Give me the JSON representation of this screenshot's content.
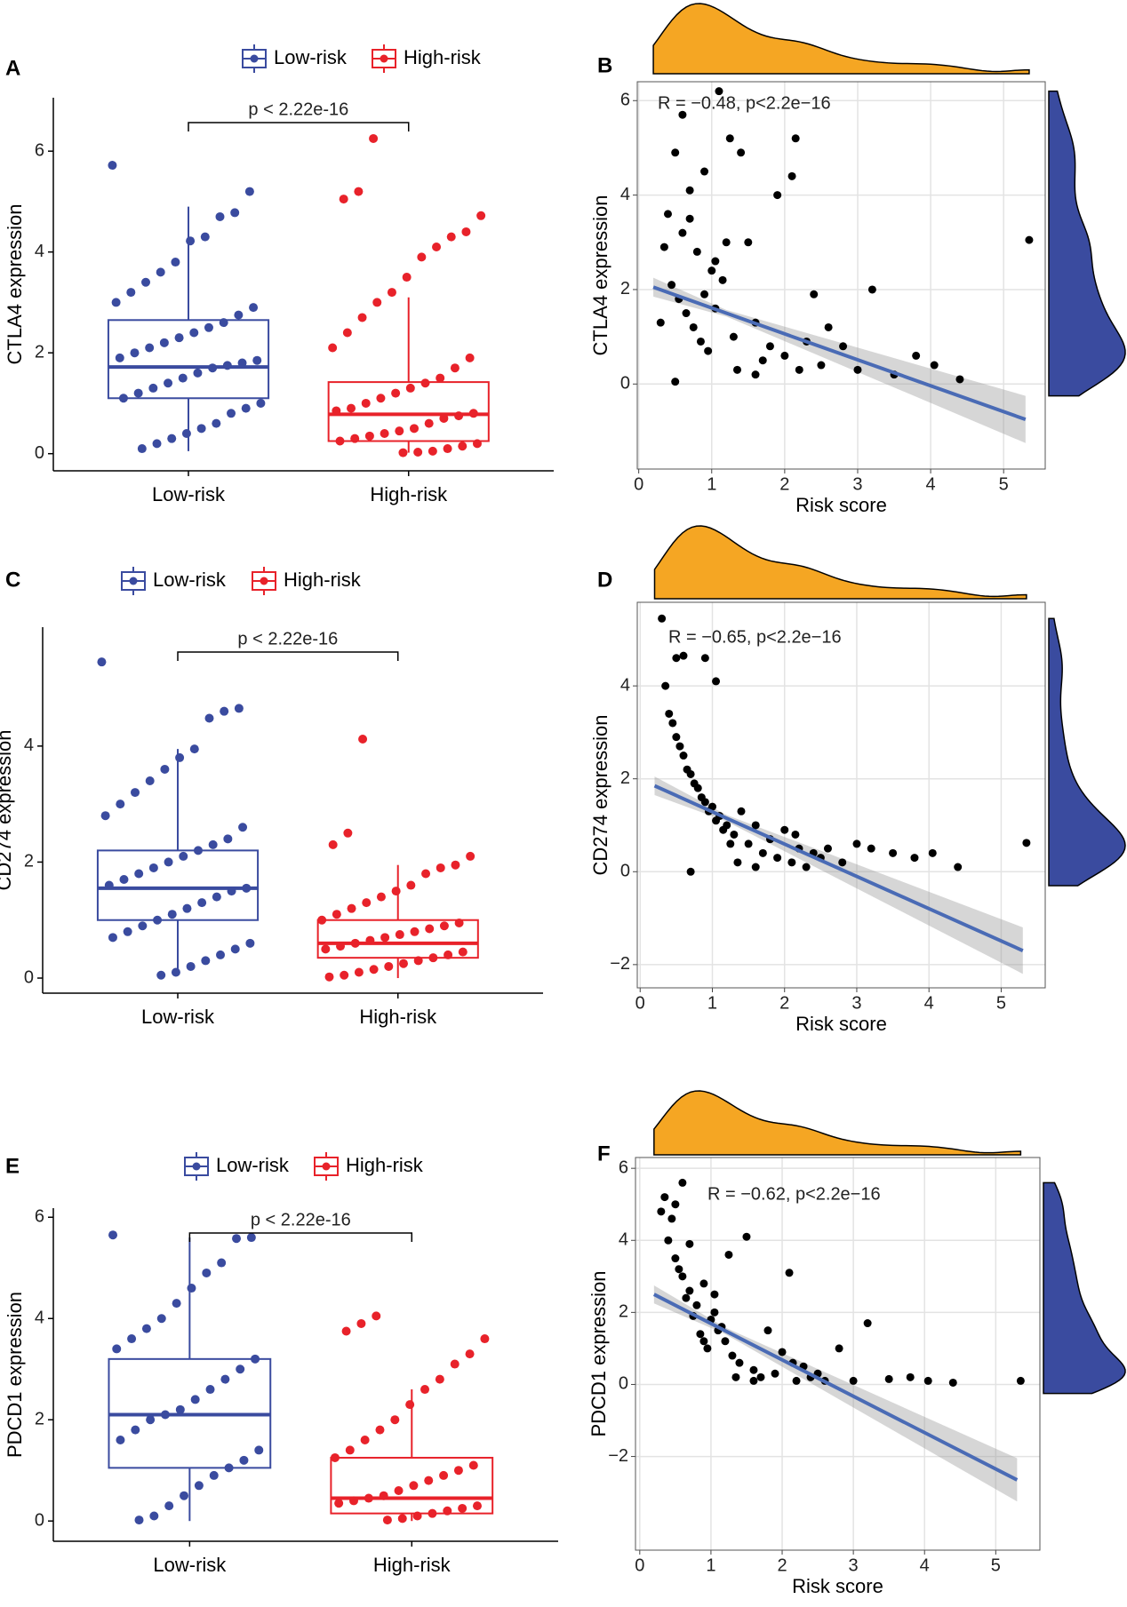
{
  "chart_data": [
    {
      "type": "box",
      "panel": "A",
      "ylabel": "CTLA4 expression",
      "annotation": "p < 2.22e-16",
      "categories": [
        "Low-risk",
        "High-risk"
      ],
      "ylim": [
        -0.34,
        7.06
      ],
      "yticks": [
        0,
        2,
        4,
        6
      ],
      "series": [
        {
          "name": "Low-risk",
          "color": "#3a4b9f",
          "box": {
            "min": 0.05,
            "q1": 1.1,
            "median": 1.72,
            "q3": 2.65,
            "max": 4.9
          },
          "points": [
            5.72,
            5.2,
            4.78,
            4.7,
            4.3,
            4.22,
            3.8,
            3.6,
            3.4,
            3.2,
            3.0,
            2.9,
            2.75,
            2.6,
            2.5,
            2.4,
            2.3,
            2.2,
            2.1,
            2.0,
            1.9,
            1.85,
            1.8,
            1.75,
            1.7,
            1.6,
            1.5,
            1.4,
            1.3,
            1.2,
            1.1,
            1.0,
            0.9,
            0.8,
            0.6,
            0.5,
            0.4,
            0.3,
            0.2,
            0.1
          ]
        },
        {
          "name": "High-risk",
          "color": "#e8222a",
          "box": {
            "min": 0.02,
            "q1": 0.25,
            "median": 0.78,
            "q3": 1.42,
            "max": 3.1
          },
          "points": [
            6.25,
            5.2,
            5.05,
            4.72,
            4.4,
            4.3,
            4.1,
            3.9,
            3.5,
            3.2,
            3.0,
            2.7,
            2.4,
            2.1,
            1.9,
            1.7,
            1.5,
            1.4,
            1.3,
            1.2,
            1.1,
            1.0,
            0.9,
            0.85,
            0.8,
            0.75,
            0.7,
            0.6,
            0.5,
            0.45,
            0.4,
            0.35,
            0.3,
            0.25,
            0.2,
            0.15,
            0.1,
            0.05,
            0.03,
            0.02
          ]
        }
      ]
    },
    {
      "type": "scatter",
      "panel": "B",
      "annotation": "R = −0.48, p<2.2e−16",
      "xlabel": "Risk score",
      "ylabel": "CTLA4 expression",
      "x": [
        0.4,
        0.5,
        0.6,
        0.7,
        0.8,
        0.9,
        1.0,
        1.1,
        1.2,
        0.35,
        0.45,
        0.55,
        0.65,
        0.75,
        0.85,
        0.95,
        1.05,
        1.15,
        1.3,
        1.4,
        1.5,
        1.6,
        1.7,
        1.8,
        1.9,
        2.0,
        2.1,
        2.2,
        2.3,
        2.4,
        2.5,
        2.6,
        2.8,
        3.0,
        3.2,
        3.5,
        3.8,
        4.05,
        4.4,
        5.35,
        1.25,
        1.05,
        1.35,
        0.6,
        2.15,
        0.3,
        0.5,
        0.9,
        1.6,
        0.7
      ],
      "y": [
        3.6,
        4.9,
        3.2,
        4.1,
        2.8,
        4.5,
        2.4,
        6.2,
        3.0,
        2.9,
        2.1,
        1.8,
        1.5,
        1.2,
        0.9,
        0.7,
        1.6,
        2.2,
        1.0,
        4.9,
        3.0,
        1.3,
        0.5,
        0.8,
        4.0,
        0.6,
        4.4,
        0.3,
        0.9,
        1.9,
        0.4,
        1.2,
        0.8,
        0.3,
        2.0,
        0.2,
        0.6,
        0.4,
        0.1,
        3.05,
        5.2,
        2.6,
        0.3,
        5.7,
        5.2,
        1.3,
        0.05,
        1.9,
        0.2,
        3.5
      ],
      "point_color": "#000000",
      "fit": {
        "x": [
          0.2,
          1.2,
          5.3
        ],
        "y": [
          2.05,
          1.5,
          -0.75
        ],
        "ci_low": [
          1.85,
          1.43,
          -1.25
        ],
        "ci_high": [
          2.25,
          1.57,
          -0.25
        ],
        "color": "#4a6bb5"
      },
      "xlim": [
        -0.02,
        5.57
      ],
      "ylim": [
        -1.8,
        6.4
      ],
      "xticks": [
        0,
        1,
        2,
        3,
        4,
        5
      ],
      "yticks": [
        0,
        2,
        4,
        6
      ],
      "grid": true,
      "top_density_color": "#f5a623",
      "right_density_color": "#3a4b9f"
    },
    {
      "type": "box",
      "panel": "C",
      "ylabel": "CD274 expression",
      "annotation": "p < 2.22e-16",
      "categories": [
        "Low-risk",
        "High-risk"
      ],
      "ylim": [
        -0.26,
        6.05
      ],
      "yticks": [
        0,
        2,
        4
      ],
      "series": [
        {
          "name": "Low-risk",
          "color": "#3a4b9f",
          "box": {
            "min": 0.05,
            "q1": 1.0,
            "median": 1.55,
            "q3": 2.2,
            "max": 3.95
          },
          "points": [
            5.45,
            4.65,
            4.6,
            4.48,
            3.95,
            3.8,
            3.6,
            3.4,
            3.2,
            3.0,
            2.8,
            2.6,
            2.4,
            2.3,
            2.2,
            2.1,
            2.0,
            1.9,
            1.8,
            1.7,
            1.6,
            1.55,
            1.5,
            1.4,
            1.3,
            1.2,
            1.1,
            1.0,
            0.9,
            0.8,
            0.7,
            0.6,
            0.5,
            0.4,
            0.3,
            0.2,
            0.1,
            0.05
          ]
        },
        {
          "name": "High-risk",
          "color": "#e8222a",
          "box": {
            "min": 0.0,
            "q1": 0.35,
            "median": 0.6,
            "q3": 1.0,
            "max": 1.95
          },
          "points": [
            4.12,
            2.5,
            2.3,
            2.1,
            1.95,
            1.9,
            1.8,
            1.6,
            1.5,
            1.4,
            1.3,
            1.2,
            1.1,
            1.0,
            0.95,
            0.9,
            0.85,
            0.8,
            0.75,
            0.7,
            0.65,
            0.6,
            0.55,
            0.5,
            0.45,
            0.4,
            0.35,
            0.3,
            0.25,
            0.2,
            0.15,
            0.1,
            0.05,
            0.02
          ]
        }
      ]
    },
    {
      "type": "scatter",
      "panel": "D",
      "annotation": "R = −0.65, p<2.2e−16",
      "xlabel": "Risk score",
      "ylabel": "CD274 expression",
      "x": [
        0.4,
        0.5,
        0.6,
        0.7,
        0.8,
        0.9,
        1.0,
        1.1,
        1.2,
        0.35,
        0.45,
        0.55,
        0.65,
        0.75,
        0.85,
        0.95,
        1.05,
        1.15,
        1.3,
        1.4,
        1.5,
        1.6,
        1.7,
        1.8,
        1.9,
        2.0,
        2.1,
        2.2,
        2.3,
        2.4,
        2.5,
        2.6,
        2.8,
        3.0,
        3.2,
        3.5,
        3.8,
        4.05,
        4.4,
        5.35,
        1.25,
        1.05,
        1.35,
        0.6,
        2.15,
        0.3,
        0.5,
        0.9,
        1.6,
        0.7
      ],
      "y": [
        3.4,
        2.9,
        2.5,
        2.1,
        1.8,
        1.5,
        1.4,
        1.2,
        1.0,
        4.0,
        3.2,
        2.7,
        2.2,
        1.9,
        1.6,
        1.3,
        1.1,
        0.9,
        0.8,
        1.3,
        0.6,
        1.0,
        0.4,
        0.7,
        0.3,
        0.9,
        0.2,
        0.5,
        0.1,
        0.4,
        0.3,
        0.5,
        0.2,
        0.6,
        0.5,
        0.4,
        0.3,
        0.4,
        0.1,
        0.62,
        0.6,
        4.1,
        0.2,
        4.65,
        0.8,
        5.45,
        4.6,
        4.6,
        0.1,
        0.0
      ],
      "point_color": "#000000",
      "fit": {
        "x": [
          0.2,
          1.2,
          5.3
        ],
        "y": [
          1.85,
          1.15,
          -1.7
        ],
        "ci_low": [
          1.65,
          1.08,
          -2.2
        ],
        "ci_high": [
          2.05,
          1.22,
          -1.2
        ],
        "color": "#4a6bb5"
      },
      "xlim": [
        -0.04,
        5.61
      ],
      "ylim": [
        -2.5,
        5.8
      ],
      "xticks": [
        0,
        1,
        2,
        3,
        4,
        5
      ],
      "yticks": [
        {
          "value": -2,
          "label": "−2"
        },
        0,
        2,
        4
      ],
      "grid": true,
      "top_density_color": "#f5a623",
      "right_density_color": "#3a4b9f"
    },
    {
      "type": "box",
      "panel": "E",
      "ylabel": "PDCD1 expression",
      "annotation": "p < 2.22e-16",
      "categories": [
        "Low-risk",
        "High-risk"
      ],
      "ylim": [
        -0.4,
        6.18
      ],
      "yticks": [
        0,
        2,
        4,
        6
      ],
      "series": [
        {
          "name": "Low-risk",
          "color": "#3a4b9f",
          "box": {
            "min": 0.0,
            "q1": 1.05,
            "median": 2.1,
            "q3": 3.2,
            "max": 5.6
          },
          "points": [
            5.65,
            5.6,
            5.58,
            5.1,
            4.9,
            4.6,
            4.3,
            4.0,
            3.8,
            3.6,
            3.4,
            3.2,
            3.0,
            2.8,
            2.6,
            2.4,
            2.2,
            2.1,
            2.0,
            1.8,
            1.6,
            1.4,
            1.2,
            1.05,
            0.9,
            0.7,
            0.5,
            0.3,
            0.1,
            0.02
          ]
        },
        {
          "name": "High-risk",
          "color": "#e8222a",
          "box": {
            "min": 0.0,
            "q1": 0.15,
            "median": 0.45,
            "q3": 1.25,
            "max": 2.6
          },
          "points": [
            4.05,
            3.9,
            3.75,
            3.6,
            3.3,
            3.1,
            2.8,
            2.6,
            2.3,
            2.0,
            1.8,
            1.6,
            1.4,
            1.25,
            1.1,
            1.0,
            0.9,
            0.8,
            0.7,
            0.6,
            0.5,
            0.45,
            0.4,
            0.35,
            0.3,
            0.25,
            0.2,
            0.15,
            0.1,
            0.05,
            0.02
          ]
        }
      ]
    },
    {
      "type": "scatter",
      "panel": "F",
      "annotation": "R = −0.62, p<2.2e−16",
      "xlabel": "Risk score",
      "ylabel": "PDCD1 expression",
      "x": [
        0.4,
        0.5,
        0.6,
        0.7,
        0.8,
        0.9,
        1.0,
        1.1,
        1.2,
        0.35,
        0.45,
        0.55,
        0.65,
        0.75,
        0.85,
        0.95,
        1.05,
        1.15,
        1.3,
        1.4,
        1.5,
        1.6,
        1.7,
        1.8,
        1.9,
        2.0,
        2.1,
        2.2,
        2.3,
        2.4,
        2.5,
        2.6,
        2.8,
        3.0,
        3.2,
        3.5,
        3.8,
        4.05,
        4.4,
        5.35,
        1.25,
        1.05,
        1.35,
        0.6,
        2.15,
        0.3,
        0.5,
        0.9,
        1.6,
        0.7
      ],
      "y": [
        4.0,
        3.5,
        3.0,
        2.6,
        2.2,
        2.8,
        1.8,
        1.5,
        1.2,
        5.2,
        4.6,
        3.2,
        2.4,
        1.9,
        1.4,
        1.0,
        2.0,
        1.6,
        0.8,
        0.6,
        4.1,
        0.4,
        0.2,
        1.5,
        0.3,
        0.9,
        3.1,
        0.1,
        0.5,
        0.2,
        0.3,
        0.1,
        1.0,
        0.1,
        1.7,
        0.15,
        0.2,
        0.1,
        0.05,
        0.1,
        3.6,
        2.5,
        0.2,
        5.6,
        0.6,
        4.8,
        5.0,
        1.2,
        0.1,
        3.9
      ],
      "point_color": "#000000",
      "fit": {
        "x": [
          0.2,
          1.2,
          5.3
        ],
        "y": [
          2.5,
          1.49,
          -2.65
        ],
        "ci_low": [
          2.25,
          1.4,
          -3.25
        ],
        "ci_high": [
          2.75,
          1.58,
          -2.05
        ],
        "color": "#4a6bb5"
      },
      "xlim": [
        -0.06,
        5.62
      ],
      "ylim": [
        -4.6,
        6.3
      ],
      "xticks": [
        0,
        1,
        2,
        3,
        4,
        5
      ],
      "yticks": [
        {
          "value": -2,
          "label": "−2"
        },
        0,
        2,
        4,
        6
      ],
      "grid": true,
      "top_density_color": "#f5a623",
      "right_density_color": "#3a4b9f"
    }
  ]
}
